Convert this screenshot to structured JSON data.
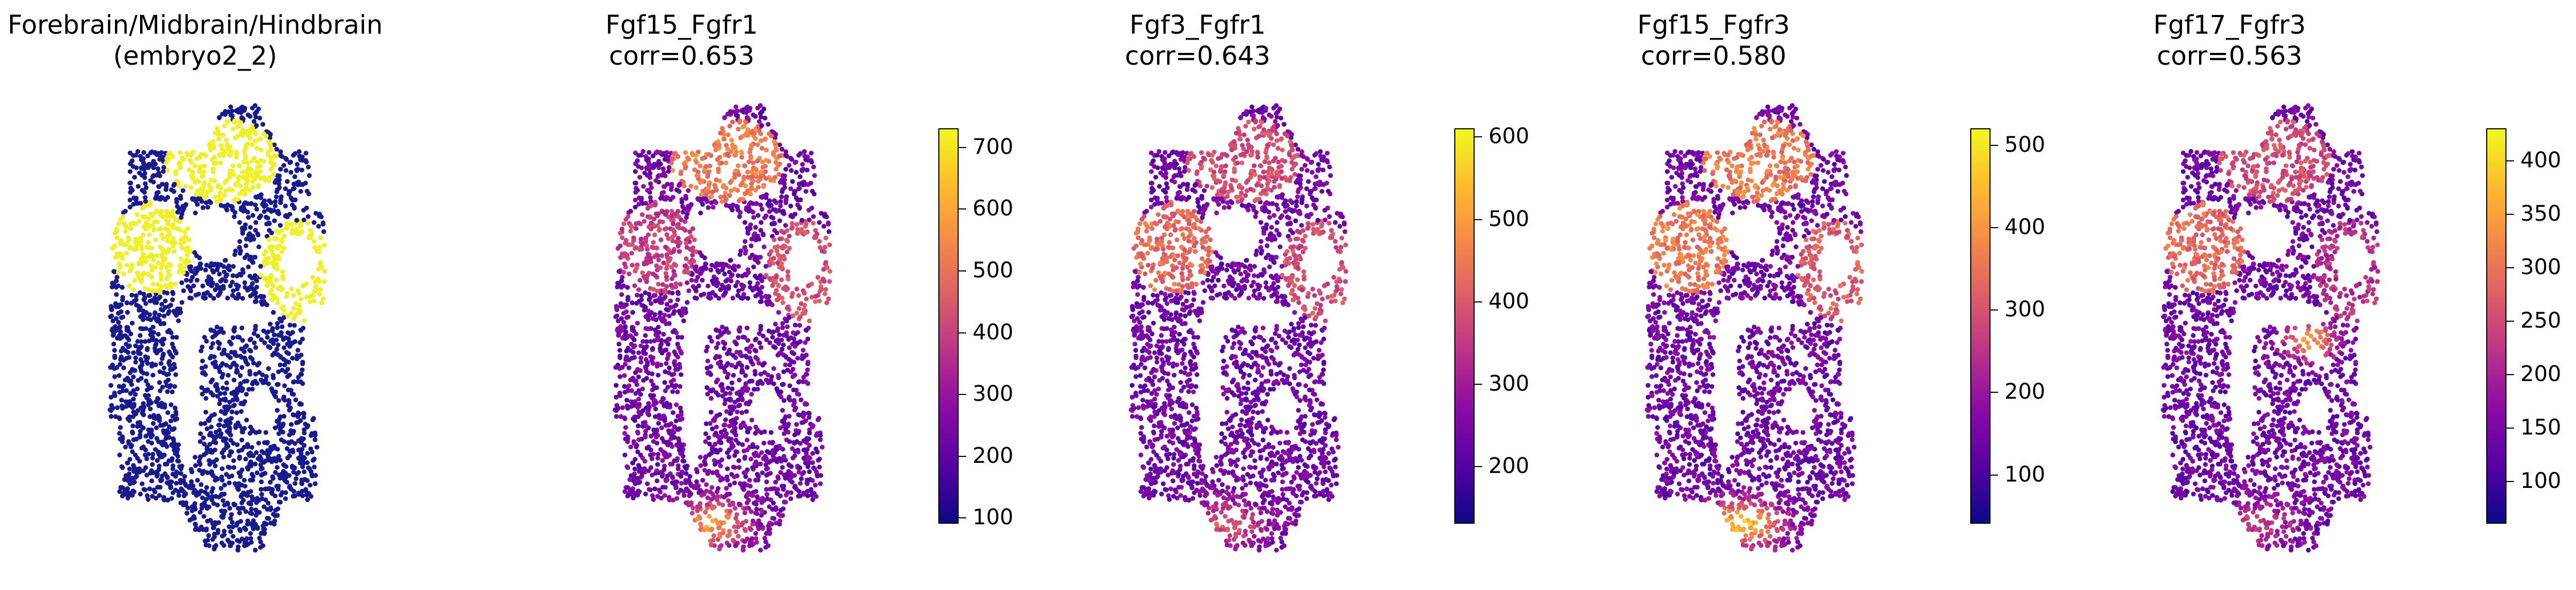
{
  "chart_data": [
    {
      "type": "scatter",
      "title": "Forebrain/Midbrain/Hindbrain\n(embryo2_2)",
      "color_mode": "categorical",
      "category_colors": {
        "background": "#1a1a8c",
        "highlight": "#f0f028"
      },
      "colorbar": null
    },
    {
      "type": "scatter",
      "title": "Fgf15_Fgfr1\ncorr=0.653",
      "colormap": "plasma",
      "vmin": 90,
      "vmax": 730,
      "colorbar_ticks": [
        "100",
        "200",
        "300",
        "400",
        "500",
        "600",
        "700"
      ]
    },
    {
      "type": "scatter",
      "title": "Fgf3_Fgfr1\ncorr=0.643",
      "colormap": "plasma",
      "vmin": 130,
      "vmax": 610,
      "colorbar_ticks": [
        "200",
        "300",
        "400",
        "500",
        "600"
      ]
    },
    {
      "type": "scatter",
      "title": "Fgf15_Fgfr3\ncorr=0.580",
      "colormap": "plasma",
      "vmin": 40,
      "vmax": 520,
      "colorbar_ticks": [
        "100",
        "200",
        "300",
        "400",
        "500"
      ]
    },
    {
      "type": "scatter",
      "title": "Fgf17_Fgfr3\ncorr=0.563",
      "colormap": "plasma",
      "vmin": 60,
      "vmax": 430,
      "colorbar_ticks": [
        "100",
        "150",
        "200",
        "250",
        "300",
        "350",
        "400"
      ]
    }
  ]
}
